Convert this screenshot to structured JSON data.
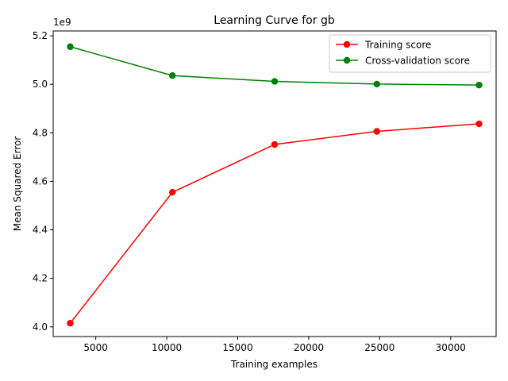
{
  "chart_data": {
    "type": "line",
    "title": "Learning Curve for gb",
    "xlabel": "Training examples",
    "ylabel": "Mean Squared Error",
    "y_offset_label": "1e9",
    "xlim": [
      2000,
      33200
    ],
    "ylim": [
      3.96,
      5.22
    ],
    "x_ticks": [
      5000,
      10000,
      15000,
      20000,
      25000,
      30000
    ],
    "x_tick_labels": [
      "5000",
      "10000",
      "15000",
      "20000",
      "25000",
      "30000"
    ],
    "y_ticks": [
      4.0,
      4.2,
      4.4,
      4.6,
      4.8,
      5.0,
      5.2
    ],
    "y_tick_labels": [
      "4.0",
      "4.2",
      "4.4",
      "4.6",
      "4.8",
      "5.0",
      "5.2"
    ],
    "x": [
      3200,
      10400,
      17600,
      24800,
      32000
    ],
    "series": [
      {
        "name": "Training score",
        "color": "#ff0000",
        "values": [
          4.015,
          4.555,
          4.752,
          4.806,
          4.837
        ]
      },
      {
        "name": "Cross-validation score",
        "color": "#008000",
        "values": [
          5.155,
          5.036,
          5.012,
          5.001,
          4.997
        ]
      }
    ],
    "grid": false,
    "legend": "top-right"
  }
}
